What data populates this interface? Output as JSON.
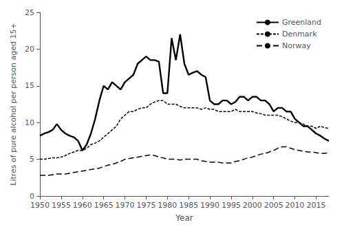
{
  "chart_data": {
    "type": "line",
    "xlabel": "Year",
    "ylabel": "Litres of pure alcohol per person aged 15+",
    "xlim": [
      1950,
      2018
    ],
    "ylim": [
      0,
      25
    ],
    "xticks": [
      1950,
      1955,
      1960,
      1965,
      1970,
      1975,
      1980,
      1985,
      1990,
      1995,
      2000,
      2005,
      2010,
      2015
    ],
    "yticks": [
      0,
      5,
      10,
      15,
      20,
      25
    ],
    "grid": false,
    "legend": "upper right",
    "x": [
      1950,
      1951,
      1952,
      1953,
      1954,
      1955,
      1956,
      1957,
      1958,
      1959,
      1960,
      1961,
      1962,
      1963,
      1964,
      1965,
      1966,
      1967,
      1968,
      1969,
      1970,
      1971,
      1972,
      1973,
      1974,
      1975,
      1976,
      1977,
      1978,
      1979,
      1980,
      1981,
      1982,
      1983,
      1984,
      1985,
      1986,
      1987,
      1988,
      1989,
      1990,
      1991,
      1992,
      1993,
      1994,
      1995,
      1996,
      1997,
      1998,
      1999,
      2000,
      2001,
      2002,
      2003,
      2004,
      2005,
      2006,
      2007,
      2008,
      2009,
      2010,
      2011,
      2012,
      2013,
      2014,
      2015,
      2016,
      2017,
      2018
    ],
    "series": [
      {
        "name": "Greenland",
        "color": "#000000",
        "line_style": "solid",
        "values": [
          8.2,
          8.5,
          8.7,
          9.0,
          9.8,
          9.0,
          8.5,
          8.2,
          8.0,
          7.5,
          6.2,
          7.0,
          8.5,
          10.5,
          13.0,
          15.0,
          14.5,
          15.5,
          15.0,
          14.5,
          15.5,
          16.0,
          16.5,
          18.0,
          18.5,
          19.0,
          18.5,
          18.5,
          18.3,
          14.0,
          14.0,
          21.5,
          18.5,
          22.0,
          18.0,
          16.5,
          16.8,
          17.0,
          16.5,
          16.2,
          13.0,
          12.5,
          12.5,
          13.0,
          13.0,
          12.5,
          12.8,
          13.5,
          13.5,
          13.0,
          13.5,
          13.5,
          13.0,
          13.0,
          12.5,
          11.5,
          12.0,
          12.0,
          11.5,
          11.5,
          10.5,
          10.0,
          9.5,
          9.5,
          9.0,
          8.5,
          8.2,
          7.8,
          7.5
        ]
      },
      {
        "name": "Denmark",
        "color": "#000000",
        "line_style": "dashed",
        "values": [
          5.0,
          5.0,
          5.1,
          5.2,
          5.2,
          5.3,
          5.5,
          5.8,
          6.0,
          6.2,
          6.2,
          6.5,
          7.0,
          7.2,
          7.5,
          8.0,
          8.5,
          9.0,
          9.5,
          10.5,
          11.0,
          11.5,
          11.5,
          11.8,
          12.0,
          12.0,
          12.5,
          12.8,
          13.0,
          13.0,
          12.5,
          12.5,
          12.5,
          12.2,
          12.0,
          12.0,
          12.0,
          12.0,
          11.8,
          12.0,
          11.8,
          11.8,
          11.5,
          11.5,
          11.5,
          11.5,
          11.8,
          11.5,
          11.5,
          11.5,
          11.5,
          11.3,
          11.2,
          11.0,
          11.0,
          11.0,
          11.0,
          10.8,
          10.5,
          10.2,
          10.0,
          10.0,
          9.8,
          9.5,
          9.5,
          9.2,
          9.5,
          9.3,
          9.2
        ]
      },
      {
        "name": "Norway",
        "color": "#000000",
        "line_style": "long-dashed",
        "values": [
          2.8,
          2.8,
          2.8,
          2.9,
          3.0,
          3.0,
          3.0,
          3.1,
          3.2,
          3.3,
          3.4,
          3.5,
          3.6,
          3.7,
          3.8,
          4.0,
          4.2,
          4.3,
          4.5,
          4.7,
          5.0,
          5.1,
          5.2,
          5.3,
          5.4,
          5.5,
          5.6,
          5.5,
          5.3,
          5.2,
          5.0,
          5.0,
          5.0,
          4.9,
          5.0,
          5.0,
          5.0,
          5.0,
          4.8,
          4.7,
          4.6,
          4.6,
          4.6,
          4.5,
          4.5,
          4.5,
          4.7,
          4.8,
          5.0,
          5.2,
          5.3,
          5.5,
          5.7,
          5.8,
          6.0,
          6.2,
          6.5,
          6.7,
          6.7,
          6.5,
          6.3,
          6.2,
          6.1,
          6.0,
          6.0,
          5.9,
          5.8,
          5.8,
          5.9
        ]
      }
    ]
  }
}
